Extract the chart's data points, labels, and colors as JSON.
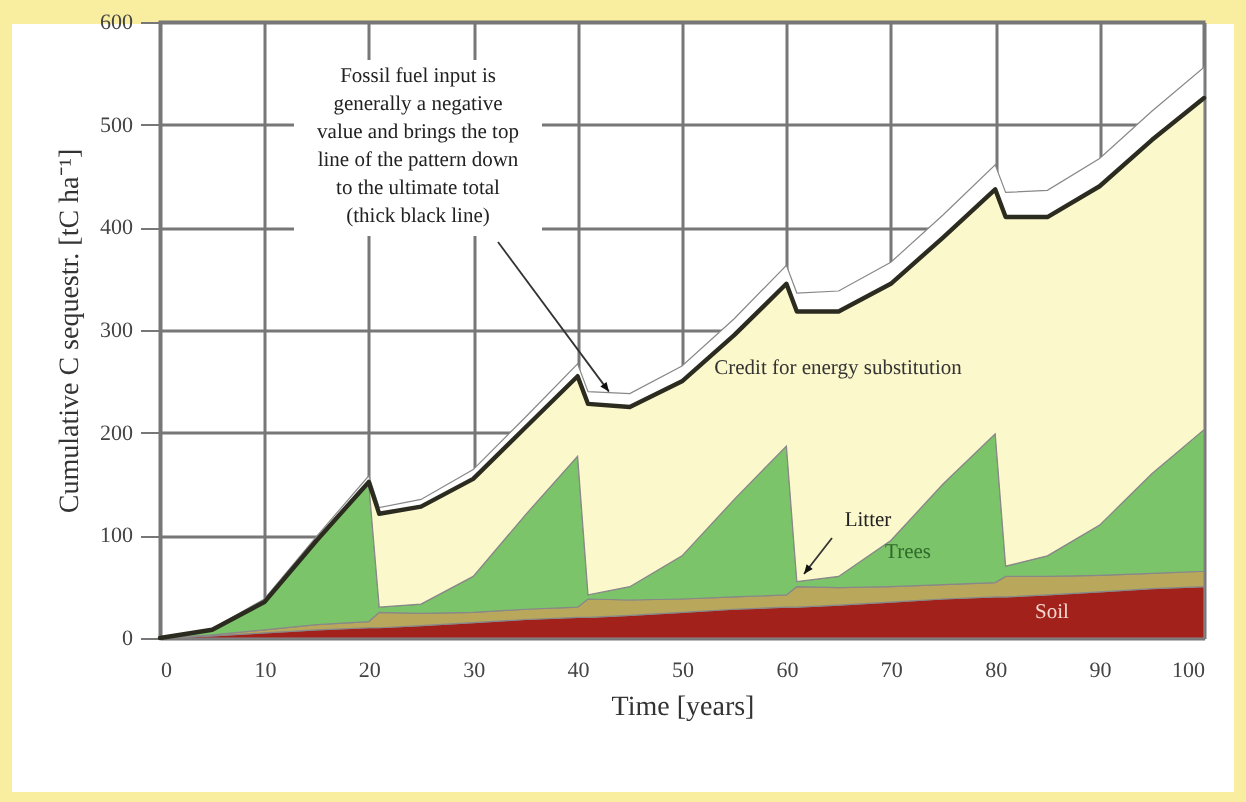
{
  "chart_data": {
    "type": "area",
    "stacked": true,
    "xlabel": "Time [years]",
    "ylabel": "Cumulative C sequestr. [tC ha⁻¹]",
    "x": [
      0,
      5,
      10,
      15,
      20,
      21,
      25,
      30,
      35,
      40,
      41,
      45,
      50,
      55,
      60,
      61,
      65,
      70,
      75,
      80,
      81,
      85,
      90,
      95,
      100
    ],
    "series": [
      {
        "color": "#a3211b",
        "values": [
          0,
          2,
          5,
          8,
          10,
          10,
          12,
          15,
          18,
          20,
          20,
          22,
          25,
          28,
          30,
          30,
          32,
          35,
          38,
          40,
          40,
          42,
          45,
          48,
          50
        ]
      },
      {
        "color": "#b9a75c",
        "values": [
          0,
          1,
          3,
          5,
          6,
          15,
          12,
          10,
          10,
          10,
          18,
          15,
          13,
          12,
          12,
          20,
          17,
          15,
          14,
          14,
          20,
          18,
          16,
          15,
          15
        ]
      },
      {
        "color": "#7cc46a",
        "values": [
          0,
          5,
          27,
          82,
          134,
          5,
          9,
          35,
          92,
          147,
          4,
          13,
          42,
          95,
          145,
          5,
          11,
          45,
          98,
          145,
          10,
          20,
          49,
          97,
          138
        ]
      },
      {
        "color": "#fbf8cc",
        "values": [
          0,
          0,
          0,
          0,
          2,
          91,
          95,
          95,
          85,
          78,
          186,
          175,
          170,
          160,
          158,
          263,
          258,
          250,
          240,
          238,
          340,
          330,
          330,
          325,
          323
        ]
      },
      {
        "color": "#ffffff",
        "values": [
          0,
          1,
          3,
          4,
          6,
          6,
          7,
          9,
          10,
          12,
          12,
          13,
          15,
          16,
          18,
          18,
          20,
          21,
          22,
          24,
          24,
          26,
          27,
          28,
          30
        ]
      }
    ],
    "xlim": [
      0,
      100
    ],
    "ylim": [
      0,
      600
    ],
    "xticks": [
      0,
      10,
      20,
      30,
      40,
      50,
      60,
      70,
      80,
      90,
      100
    ],
    "yticks": [
      0,
      100,
      200,
      300,
      400,
      500,
      600
    ],
    "grid": true,
    "annotations": [
      {
        "text": "Fossil fuel input is\ngenerally a negative\nvalue and brings the top\nline of the pattern down\nto the ultimate total\n(thick black line)",
        "x": 43,
        "y": 240
      },
      "Credit for energy substitution",
      "Litter",
      "Trees",
      "Soil"
    ]
  }
}
